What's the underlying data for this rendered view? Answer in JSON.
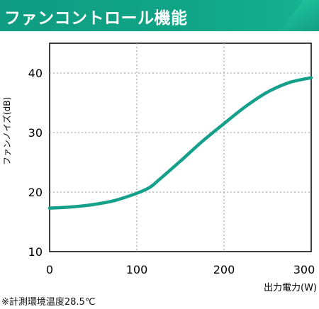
{
  "header": {
    "title": "ファンコントロール機能",
    "accent_color": "#0f9c82"
  },
  "chart_data": {
    "type": "line",
    "title": "",
    "xlabel": "出力電力(W)",
    "ylabel": "ファンノイズ(dB)",
    "xlim": [
      0,
      300
    ],
    "ylim": [
      10,
      45
    ],
    "x_ticks": [
      0,
      100,
      200,
      300
    ],
    "y_ticks": [
      10,
      20,
      30,
      40
    ],
    "grid": true,
    "line_color": "#14a08a",
    "series": [
      {
        "name": "",
        "x": [
          0,
          25,
          50,
          75,
          100,
          115,
          125,
          150,
          175,
          200,
          225,
          250,
          275,
          300
        ],
        "y": [
          17.3,
          17.5,
          17.9,
          18.6,
          19.8,
          20.8,
          22.0,
          25.2,
          28.5,
          31.5,
          34.4,
          36.8,
          38.4,
          39.2
        ]
      }
    ]
  },
  "footnote": "※計測環境温度28.5℃"
}
